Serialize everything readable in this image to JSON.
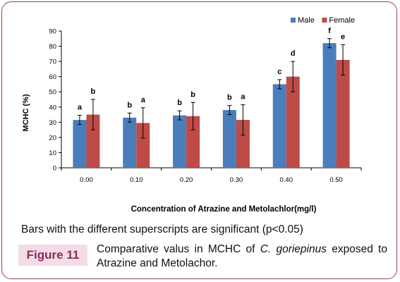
{
  "chart_data": {
    "type": "bar",
    "categories": [
      "0.00",
      "0.10",
      "0.20",
      "0.30",
      "0.40",
      "0.50"
    ],
    "series": [
      {
        "name": "Male",
        "color": "#4a7ebb",
        "values": [
          31.5,
          33,
          34.5,
          38,
          55,
          82
        ],
        "errors": [
          3,
          3,
          3,
          3,
          3,
          3
        ],
        "superscripts": [
          "a",
          "b",
          "b",
          "b",
          "c",
          "f"
        ]
      },
      {
        "name": "Female",
        "color": "#be4b48",
        "values": [
          35,
          29.5,
          34,
          31.5,
          60,
          71
        ],
        "errors": [
          10,
          10,
          9,
          10,
          10,
          10
        ],
        "superscripts": [
          "b",
          "a",
          "b",
          "a",
          "d",
          "e"
        ]
      }
    ],
    "xlabel": "Concentration  of Atrazine and Metolachlor(mg/l)",
    "ylabel": "MCHC (%)",
    "ylim": [
      0,
      90
    ],
    "yticks": [
      "0",
      "10",
      "20",
      "30",
      "40",
      "50",
      "60",
      "70",
      "80",
      "90"
    ],
    "legend_position": "top-right",
    "grid": false
  },
  "note": "Bars with the different superscripts are significant (p<0.05)",
  "figure_label": "Figure 11",
  "caption": {
    "before_species": "Comparative valus in MCHC of ",
    "species": "C. goriepinus",
    "after_species": " exposed to Atrazine and Metolachor."
  }
}
